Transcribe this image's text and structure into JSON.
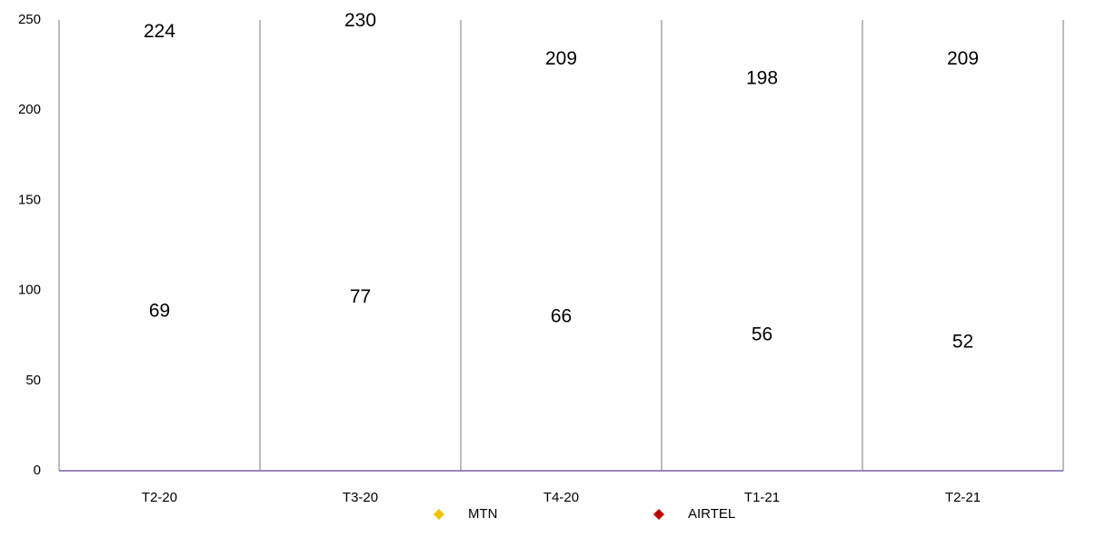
{
  "chart_data": {
    "type": "line",
    "categories": [
      "T2-20",
      "T3-20",
      "T4-20",
      "T1-21",
      "T2-21"
    ],
    "series": [
      {
        "name": "MTN",
        "color": "#f2c200",
        "values": [
          224,
          230,
          209,
          198,
          209
        ]
      },
      {
        "name": "AIRTEL",
        "color": "#c00000",
        "values": [
          69,
          77,
          66,
          56,
          52
        ]
      }
    ],
    "ylim": [
      0,
      250
    ],
    "yticks": [
      0,
      50,
      100,
      150,
      200,
      250
    ],
    "legend": "bottom"
  }
}
